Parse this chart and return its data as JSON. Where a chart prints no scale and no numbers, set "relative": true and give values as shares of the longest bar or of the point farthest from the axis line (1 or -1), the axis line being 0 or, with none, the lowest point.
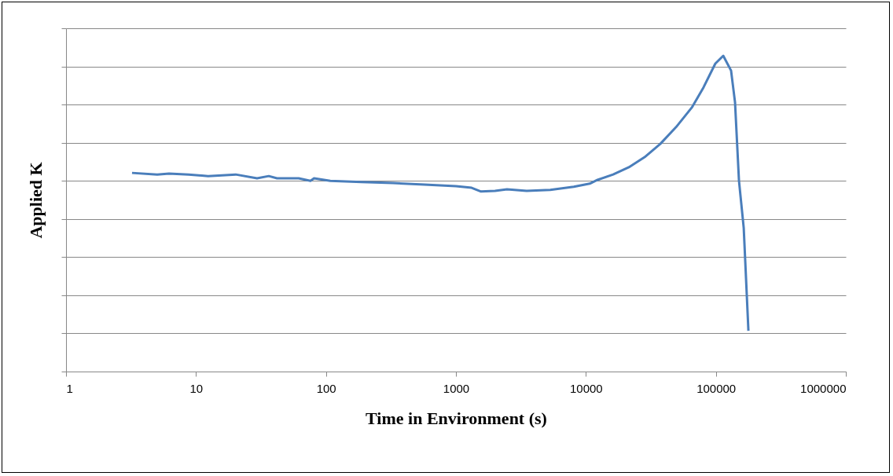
{
  "chart_data": {
    "type": "line",
    "xlabel": "Time in Environment (s)",
    "ylabel": "Applied K",
    "relative": true,
    "log": "x",
    "xlim": [
      1,
      1000000
    ],
    "xticks": [
      1,
      10,
      100,
      1000,
      10000,
      100000,
      1000000
    ],
    "grid": "y",
    "legend": false,
    "marker": "none",
    "line_style": "solid",
    "x": [
      3.22,
      5.03,
      6.2,
      8.78,
      12.4,
      20.2,
      29.5,
      36.3,
      42,
      61.7,
      76,
      81,
      108,
      187,
      328,
      573,
      1000,
      1320,
      1560,
      2000,
      2470,
      3500,
      5320,
      8070,
      10700,
      12300,
      16200,
      21400,
      28300,
      37400,
      49400,
      65300,
      80400,
      99000,
      114000,
      130900,
      140400,
      150600,
      163800,
      178000
    ],
    "series": [
      {
        "color": "#4a7ebb",
        "values": [
          0.629,
          0.624,
          0.627,
          0.624,
          0.619,
          0.624,
          0.612,
          0.619,
          0.612,
          0.612,
          0.604,
          0.612,
          0.604,
          0.6,
          0.597,
          0.592,
          0.587,
          0.582,
          0.57,
          0.572,
          0.577,
          0.572,
          0.575,
          0.585,
          0.595,
          0.607,
          0.624,
          0.647,
          0.679,
          0.721,
          0.774,
          0.836,
          0.9,
          0.975,
          1.0,
          0.953,
          0.853,
          0.604,
          0.455,
          0.129
        ]
      }
    ]
  }
}
